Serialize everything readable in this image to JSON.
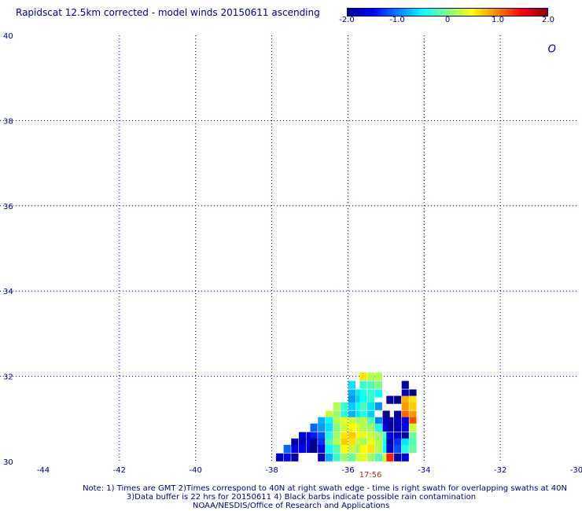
{
  "title": "Rapidscat 12.5km corrected - model winds 20150611 ascending",
  "colorbar": {
    "min": -2.0,
    "max": 2.0,
    "labels": [
      "-2.0",
      "-1.0",
      "0",
      "1.0",
      "2.0"
    ],
    "colors": [
      "#00008b",
      "#0000ff",
      "#0080ff",
      "#00ffff",
      "#80ff80",
      "#ffff00",
      "#ff8000",
      "#ff0000",
      "#8b0000"
    ]
  },
  "map": {
    "lon_range": [
      -44,
      -30
    ],
    "lat_range": [
      30,
      40
    ],
    "x_tick_labels": [
      "-44",
      "-42",
      "-40",
      "-38",
      "-36",
      "-34",
      "-32",
      "-30"
    ],
    "y_tick_labels": [
      "30",
      "32",
      "34",
      "36",
      "38",
      "40"
    ],
    "gridline_color": "#0000aa"
  },
  "swath_time": "17:56",
  "notes": [
    "Note: 1) Times are GMT 2)Times correspond to 40N at right swath edge - time is right swath for overlapping swaths at 40N",
    "3)Data buffer is 22 hrs for 20150611 4) Black barbs indicate possible rain contamination",
    "NOAA/NESDIS/Office of Research and Applications"
  ],
  "chart_data": {
    "type": "heatmap",
    "title": "Rapidscat 12.5km corrected - model winds 20150611 ascending",
    "x_label": "",
    "y_label": "",
    "x_range": [
      -44,
      -30
    ],
    "y_range": [
      30,
      40
    ],
    "value_range": [
      -2.0,
      2.0
    ],
    "cell_size_deg": 0.18,
    "rows": [
      {
        "lat": 32.0,
        "cells": [
          [
            -35.6,
            0.6
          ],
          [
            -35.4,
            0.2
          ],
          [
            -35.2,
            0.2
          ]
        ]
      },
      {
        "lat": 31.8,
        "cells": [
          [
            -35.9,
            -0.6
          ],
          [
            -35.6,
            -0.3
          ],
          [
            -35.4,
            -0.2
          ],
          [
            -35.2,
            0.0
          ],
          [
            -34.5,
            -1.9
          ]
        ]
      },
      {
        "lat": 31.6,
        "cells": [
          [
            -35.9,
            -0.8
          ],
          [
            -35.7,
            -0.6
          ],
          [
            -35.6,
            -0.4
          ],
          [
            -35.4,
            -0.3
          ],
          [
            -35.2,
            -0.5
          ],
          [
            -34.5,
            -1.8
          ],
          [
            -34.3,
            -2.0
          ]
        ]
      },
      {
        "lat": 31.45,
        "cells": [
          [
            -35.9,
            -0.9
          ],
          [
            -35.7,
            -0.7
          ],
          [
            -35.6,
            -0.5
          ],
          [
            -35.4,
            -0.3
          ],
          [
            -34.9,
            -1.9
          ],
          [
            -34.7,
            -2.0
          ],
          [
            -34.5,
            0.8
          ],
          [
            -34.3,
            0.6
          ]
        ]
      },
      {
        "lat": 31.3,
        "cells": [
          [
            -36.3,
            0.2
          ],
          [
            -36.1,
            -0.3
          ],
          [
            -35.9,
            -0.7
          ],
          [
            -35.7,
            -0.5
          ],
          [
            -35.6,
            -0.2
          ],
          [
            -35.4,
            -0.6
          ],
          [
            -35.2,
            -0.9
          ],
          [
            -34.5,
            0.9
          ],
          [
            -34.3,
            0.7
          ]
        ]
      },
      {
        "lat": 31.1,
        "cells": [
          [
            -36.5,
            0.3
          ],
          [
            -36.3,
            0.1
          ],
          [
            -36.1,
            -0.4
          ],
          [
            -35.9,
            -0.8
          ],
          [
            -35.7,
            -0.6
          ],
          [
            -35.6,
            -0.4
          ],
          [
            -35.4,
            -0.7
          ],
          [
            -35.0,
            -2.0
          ],
          [
            -34.7,
            -1.9
          ],
          [
            -34.5,
            1.1
          ],
          [
            -34.3,
            0.9
          ]
        ]
      },
      {
        "lat": 30.95,
        "cells": [
          [
            -36.7,
            -0.8
          ],
          [
            -36.5,
            -0.5
          ],
          [
            -36.3,
            0.2
          ],
          [
            -36.1,
            0.4
          ],
          [
            -35.9,
            0.3
          ],
          [
            -35.7,
            0.1
          ],
          [
            -35.6,
            0.2
          ],
          [
            -35.4,
            -0.2
          ],
          [
            -35.2,
            -1.0
          ],
          [
            -35.0,
            -1.8
          ],
          [
            -34.9,
            -1.9
          ],
          [
            -34.7,
            -1.8
          ],
          [
            -34.5,
            -1.6
          ],
          [
            -34.3,
            1.2
          ]
        ]
      },
      {
        "lat": 30.8,
        "cells": [
          [
            -36.9,
            -1.1
          ],
          [
            -36.7,
            -0.9
          ],
          [
            -36.5,
            -0.6
          ],
          [
            -36.3,
            0.0
          ],
          [
            -36.1,
            0.3
          ],
          [
            -35.9,
            0.5
          ],
          [
            -35.7,
            0.4
          ],
          [
            -35.6,
            0.2
          ],
          [
            -35.4,
            0.1
          ],
          [
            -35.2,
            -0.4
          ],
          [
            -35.0,
            -1.5
          ],
          [
            -34.9,
            -1.9
          ],
          [
            -34.7,
            -1.8
          ],
          [
            -34.5,
            -1.5
          ],
          [
            -34.3,
            0.3
          ]
        ]
      },
      {
        "lat": 30.6,
        "cells": [
          [
            -37.2,
            -1.6
          ],
          [
            -37.0,
            -1.7
          ],
          [
            -36.9,
            -1.4
          ],
          [
            -36.7,
            -1.2
          ],
          [
            -36.5,
            -0.4
          ],
          [
            -36.3,
            0.1
          ],
          [
            -36.1,
            0.6
          ],
          [
            -35.9,
            0.7
          ],
          [
            -35.7,
            0.5
          ],
          [
            -35.6,
            0.4
          ],
          [
            -35.4,
            0.3
          ],
          [
            -35.2,
            0.1
          ],
          [
            -35.0,
            -0.2
          ],
          [
            -34.9,
            -1.6
          ],
          [
            -34.7,
            -1.8
          ],
          [
            -34.5,
            -1.9
          ],
          [
            -34.3,
            -0.1
          ]
        ]
      },
      {
        "lat": 30.45,
        "cells": [
          [
            -37.4,
            -1.9
          ],
          [
            -37.2,
            -1.8
          ],
          [
            -37.0,
            -1.6
          ],
          [
            -36.9,
            -2.0
          ],
          [
            -36.7,
            -1.3
          ],
          [
            -36.5,
            -0.2
          ],
          [
            -36.3,
            0.2
          ],
          [
            -36.1,
            0.7
          ],
          [
            -35.9,
            0.6
          ],
          [
            -35.7,
            0.3
          ],
          [
            -35.6,
            0.1
          ],
          [
            -35.4,
            0.4
          ],
          [
            -35.2,
            0.2
          ],
          [
            -35.0,
            -0.4
          ],
          [
            -34.9,
            -1.9
          ],
          [
            -34.7,
            -1.3
          ],
          [
            -34.5,
            -0.6
          ],
          [
            -34.3,
            -0.2
          ]
        ]
      },
      {
        "lat": 30.3,
        "cells": [
          [
            -37.6,
            -1.1
          ],
          [
            -37.4,
            -1.6
          ],
          [
            -37.2,
            -1.5
          ],
          [
            -37.0,
            -1.7
          ],
          [
            -36.9,
            -2.0
          ],
          [
            -36.7,
            -1.6
          ],
          [
            -36.5,
            -0.5
          ],
          [
            -36.3,
            -0.2
          ],
          [
            -36.1,
            0.5
          ],
          [
            -35.9,
            0.3
          ],
          [
            -35.7,
            0.1
          ],
          [
            -35.6,
            0.5
          ],
          [
            -35.4,
            0.6
          ],
          [
            -35.2,
            0.2
          ],
          [
            -35.0,
            -0.5
          ],
          [
            -34.9,
            -1.7
          ],
          [
            -34.7,
            -1.2
          ],
          [
            -34.5,
            -0.4
          ],
          [
            -34.3,
            -0.1
          ]
        ]
      },
      {
        "lat": 30.1,
        "cells": [
          [
            -37.8,
            -1.7
          ],
          [
            -37.6,
            -1.5
          ],
          [
            -37.4,
            -1.9
          ],
          [
            -36.7,
            -1.8
          ],
          [
            -36.5,
            -0.8
          ],
          [
            -36.3,
            -0.3
          ],
          [
            -36.1,
            0.1
          ],
          [
            -35.9,
            -0.1
          ],
          [
            -35.7,
            0.3
          ],
          [
            -35.6,
            0.4
          ],
          [
            -35.4,
            0.1
          ],
          [
            -35.2,
            -0.2
          ],
          [
            -35.0,
            0.3
          ],
          [
            -34.9,
            1.4
          ],
          [
            -34.7,
            -1.8
          ],
          [
            -34.5,
            -1.6
          ]
        ]
      }
    ],
    "annotations": [
      {
        "text": "O",
        "lon": -30.75,
        "lat": 39.6
      }
    ]
  }
}
